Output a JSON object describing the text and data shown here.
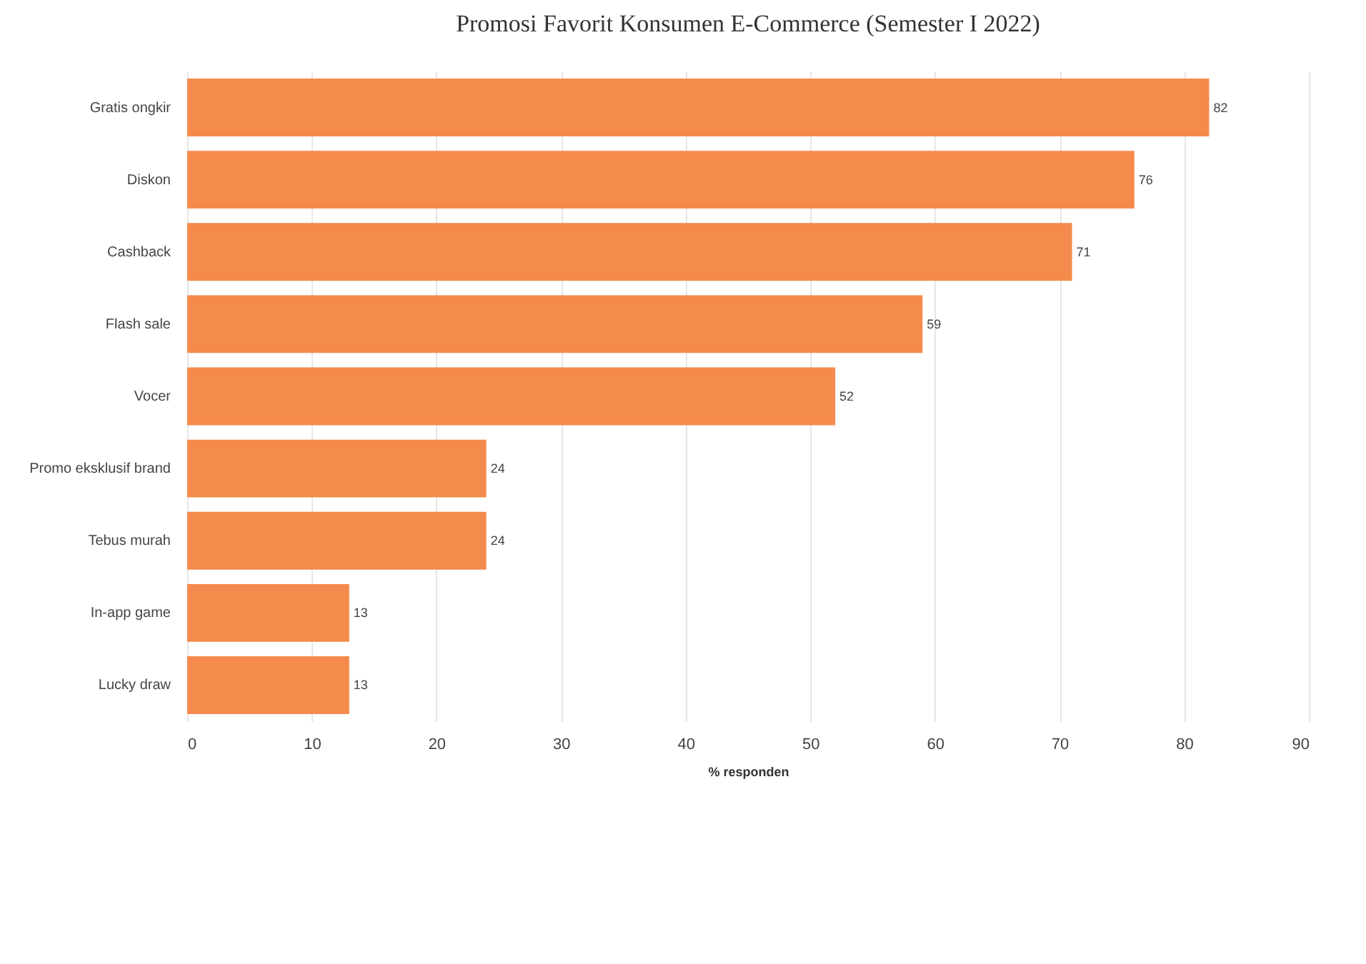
{
  "chart_data": {
    "type": "bar",
    "orientation": "horizontal",
    "title": "Promosi Favorit Konsumen E-Commerce (Semester I 2022)",
    "xlabel": "% responden",
    "categories": [
      "Gratis ongkir",
      "Diskon",
      "Cashback",
      "Flash sale",
      "Vocer",
      "Promo eksklusif brand",
      "Tebus murah",
      "In-app game",
      "Lucky draw"
    ],
    "values": [
      82,
      76,
      71,
      59,
      52,
      24,
      24,
      13,
      13
    ],
    "color": "#f48a4c",
    "xlim": [
      0,
      90
    ],
    "xticks": [
      0,
      10,
      20,
      30,
      40,
      50,
      60,
      70,
      80,
      90
    ],
    "grid": "x",
    "data_labels": true
  }
}
